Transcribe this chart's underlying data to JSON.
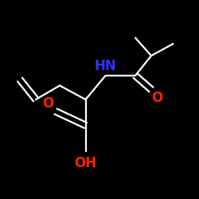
{
  "background_color": "#000000",
  "bond_color": "#ffffff",
  "N_color": "#3333ff",
  "O_color": "#ff2200",
  "NH_label": "HN",
  "O_left_label": "O",
  "O_right_label": "O",
  "OH_label": "OH",
  "lw": 1.6,
  "fontsize": 12,
  "figsize": [
    2.5,
    2.5
  ],
  "dpi": 100
}
